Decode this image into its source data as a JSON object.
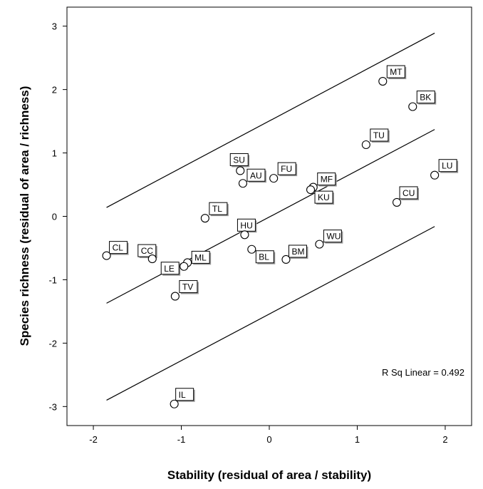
{
  "chart_data": {
    "type": "scatter",
    "xlabel": "Stability (residual of area / stability)",
    "ylabel": "Species richness (residual of area / richness)",
    "xlim": [
      -2.3,
      2.3
    ],
    "ylim": [
      -3.3,
      3.3
    ],
    "xticks": [
      -2,
      -1,
      0,
      1,
      2
    ],
    "yticks": [
      -3,
      -2,
      -1,
      0,
      1,
      2,
      3
    ],
    "x_tick_labels": [
      "-2",
      "-1",
      "0",
      "1",
      "2"
    ],
    "y_tick_labels": [
      "-3",
      "-2",
      "-1",
      "0",
      "1",
      "2",
      "3"
    ],
    "grid": false,
    "annotation": "R Sq Linear = 0.492",
    "fit_line": {
      "x": [
        -1.85,
        1.88
      ],
      "y": [
        -1.37,
        1.37
      ]
    },
    "upper_band": {
      "x": [
        -1.85,
        1.88
      ],
      "y": [
        0.14,
        2.89
      ]
    },
    "lower_band": {
      "x": [
        -1.85,
        1.88
      ],
      "y": [
        -2.9,
        -0.16
      ]
    },
    "points": [
      {
        "label": "MT",
        "x": 1.29,
        "y": 2.13
      },
      {
        "label": "BK",
        "x": 1.63,
        "y": 1.73
      },
      {
        "label": "TU",
        "x": 1.1,
        "y": 1.13
      },
      {
        "label": "SU",
        "x": -0.33,
        "y": 0.72
      },
      {
        "label": "AU",
        "x": -0.3,
        "y": 0.52
      },
      {
        "label": "FU",
        "x": 0.05,
        "y": 0.6
      },
      {
        "label": "MF",
        "x": 0.5,
        "y": 0.46
      },
      {
        "label": "KU",
        "x": 0.47,
        "y": 0.42
      },
      {
        "label": "LU",
        "x": 1.88,
        "y": 0.65
      },
      {
        "label": "CU",
        "x": 1.45,
        "y": 0.22
      },
      {
        "label": "TL",
        "x": -0.73,
        "y": -0.03
      },
      {
        "label": "HU",
        "x": -0.28,
        "y": -0.29
      },
      {
        "label": "WU",
        "x": 0.57,
        "y": -0.44
      },
      {
        "label": "BL",
        "x": -0.2,
        "y": -0.52
      },
      {
        "label": "BM",
        "x": 0.19,
        "y": -0.68
      },
      {
        "label": "CL",
        "x": -1.85,
        "y": -0.62
      },
      {
        "label": "CC",
        "x": -1.33,
        "y": -0.67
      },
      {
        "label": "ML",
        "x": -0.93,
        "y": -0.73
      },
      {
        "label": "LE",
        "x": -0.97,
        "y": -0.79
      },
      {
        "label": "TV",
        "x": -1.07,
        "y": -1.26
      },
      {
        "label": "IL",
        "x": -1.08,
        "y": -2.96
      }
    ]
  }
}
